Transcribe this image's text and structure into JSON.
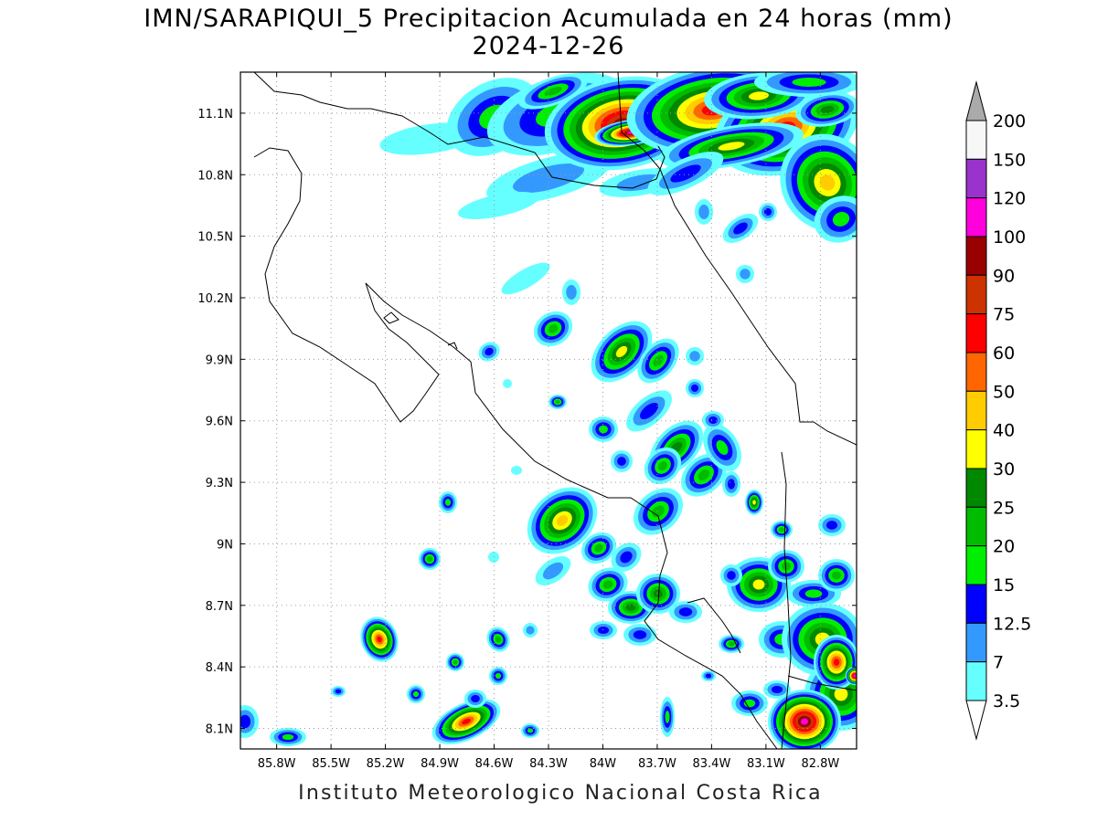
{
  "title": {
    "line1": "IMN/SARAPIQUI_5 Precipitacion Acumulada en 24 horas (mm)",
    "line2": "2024-12-26"
  },
  "footer": "Instituto Meteorologico Nacional Costa Rica",
  "map": {
    "lon_range": [
      -86.0,
      -82.6
    ],
    "lat_range": [
      8.0,
      11.3
    ],
    "lon_ticks": [
      {
        "value": -85.8,
        "label": "85.8W"
      },
      {
        "value": -85.5,
        "label": "85.5W"
      },
      {
        "value": -85.2,
        "label": "85.2W"
      },
      {
        "value": -84.9,
        "label": "84.9W"
      },
      {
        "value": -84.6,
        "label": "84.6W"
      },
      {
        "value": -84.3,
        "label": "84.3W"
      },
      {
        "value": -84.0,
        "label": "84W"
      },
      {
        "value": -83.7,
        "label": "83.7W"
      },
      {
        "value": -83.4,
        "label": "83.4W"
      },
      {
        "value": -83.1,
        "label": "83.1W"
      },
      {
        "value": -82.8,
        "label": "82.8W"
      }
    ],
    "lat_ticks": [
      {
        "value": 11.1,
        "label": "11.1N"
      },
      {
        "value": 10.8,
        "label": "10.8N"
      },
      {
        "value": 10.5,
        "label": "10.5N"
      },
      {
        "value": 10.2,
        "label": "10.2N"
      },
      {
        "value": 9.9,
        "label": "9.9N"
      },
      {
        "value": 9.6,
        "label": "9.6N"
      },
      {
        "value": 9.3,
        "label": "9.3N"
      },
      {
        "value": 9.0,
        "label": "9N"
      },
      {
        "value": 8.7,
        "label": "8.7N"
      },
      {
        "value": 8.4,
        "label": "8.4N"
      },
      {
        "value": 8.1,
        "label": "8.1N"
      }
    ],
    "gridlines": "dotted"
  },
  "colorbar": {
    "levels": [
      "200",
      "150",
      "120",
      "100",
      "90",
      "75",
      "60",
      "50",
      "40",
      "30",
      "25",
      "20",
      "15",
      "12.5",
      "7",
      "3.5"
    ],
    "colors": [
      "#f7f7f7",
      "#9933cc",
      "#ff00dd",
      "#990000",
      "#cc3300",
      "#ff0000",
      "#ff6600",
      "#ffcc00",
      "#ffff00",
      "#008800",
      "#00bb00",
      "#00ee00",
      "#0000ff",
      "#3399ff",
      "#66ffff"
    ],
    "over_color": "#aaaaaa",
    "under_color": "#ffffff"
  }
}
